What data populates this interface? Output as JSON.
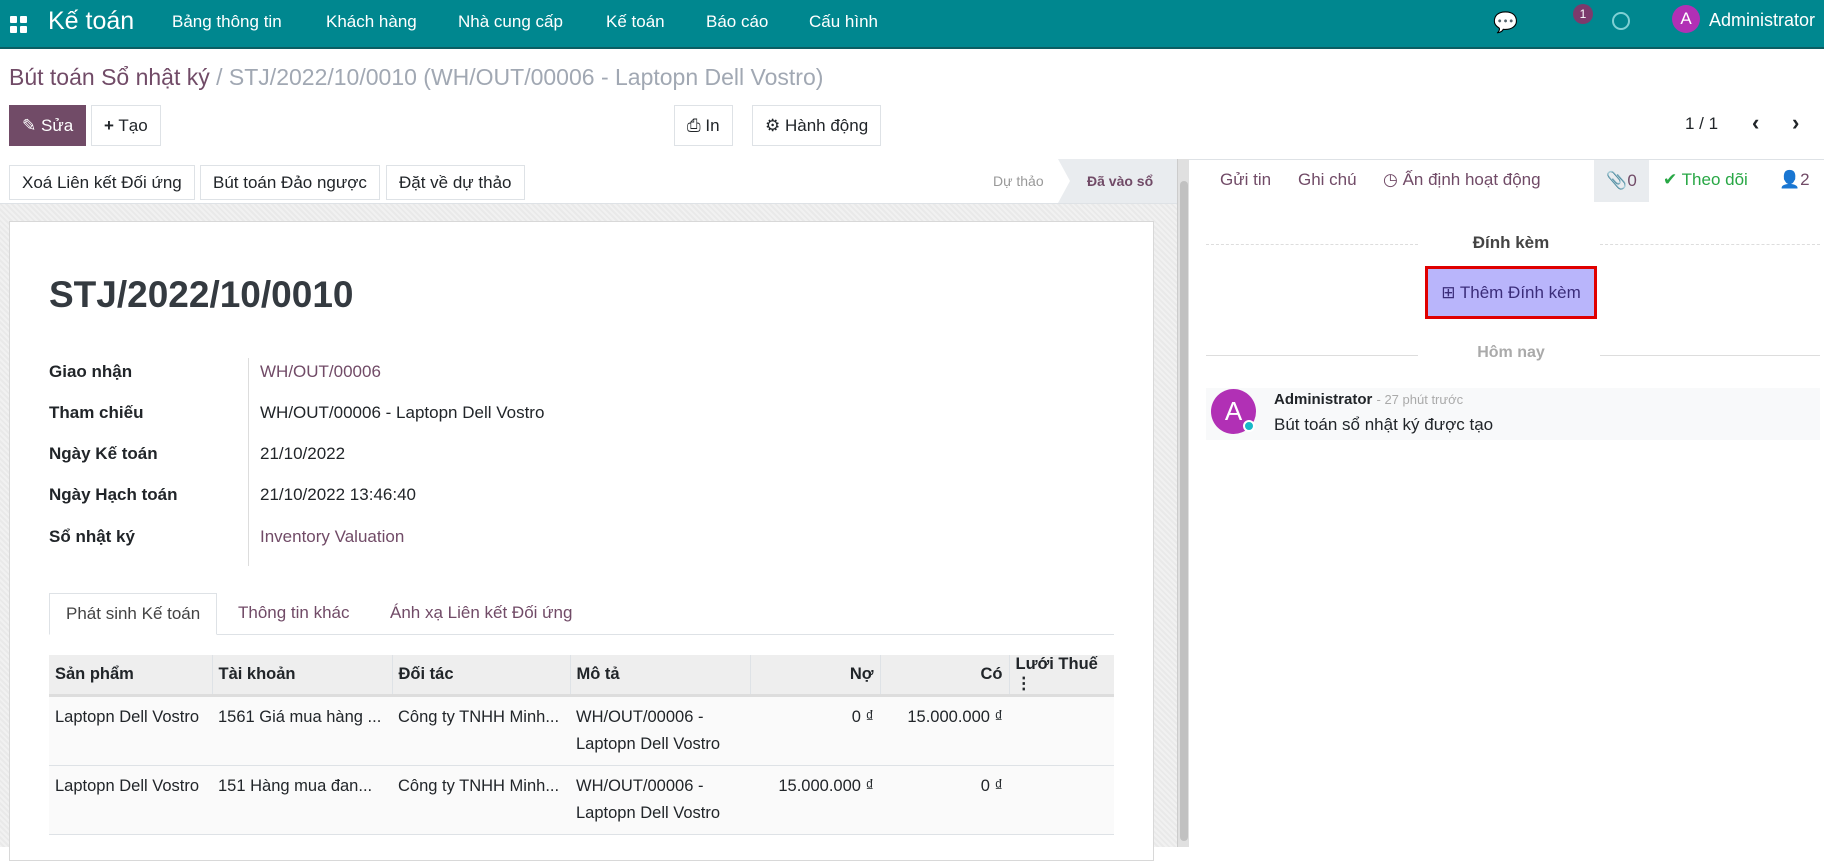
{
  "navbar": {
    "app": "Kế toán",
    "menu": [
      "Bảng thông tin",
      "Khách hàng",
      "Nhà cung cấp",
      "Kế toán",
      "Báo cáo",
      "Cấu hình"
    ],
    "messages_count": "1",
    "user": "Administrator",
    "user_initial": "A"
  },
  "breadcrumb": {
    "parent": "Bút toán Sổ nhật ký",
    "separator": "/",
    "current": "STJ/2022/10/0010 (WH/OUT/00006 - Laptopn Dell Vostro)"
  },
  "toolbar": {
    "edit": "Sửa",
    "create": "Tạo",
    "print": "In",
    "action": "Hành động",
    "pager": "1 / 1"
  },
  "actions": {
    "buttons": [
      "Xoá Liên kết Đối ứng",
      "Bút toán Đảo ngược",
      "Đặt về dự thảo"
    ],
    "status": [
      "Dự thảo",
      "Đã vào sổ"
    ],
    "active_status": "Đã vào sổ"
  },
  "form": {
    "title": "STJ/2022/10/0010",
    "fields": [
      {
        "label": "Giao nhận",
        "value": "WH/OUT/00006",
        "link": true
      },
      {
        "label": "Tham chiếu",
        "value": "WH/OUT/00006 - Laptopn Dell Vostro",
        "link": false
      },
      {
        "label": "Ngày Kế toán",
        "value": "21/10/2022",
        "link": false
      },
      {
        "label": "Ngày Hạch toán",
        "value": "21/10/2022 13:46:40",
        "link": false
      },
      {
        "label": "Sổ nhật ký",
        "value": "Inventory Valuation",
        "link": true
      }
    ],
    "tabs": [
      "Phát sinh Kế toán",
      "Thông tin khác",
      "Ánh xạ Liên kết Đối ứng"
    ],
    "table": {
      "headers": [
        "Sản phẩm",
        "Tài khoản",
        "Đối tác",
        "Mô tả",
        "Nợ",
        "Có",
        "Lưới Thuế"
      ],
      "rows": [
        [
          "Laptopn Dell Vostro",
          "1561 Giá mua hàng ...",
          "Công ty TNHH Minh...",
          "WH/OUT/00006 - Laptopn Dell Vostro",
          "0 ₫",
          "15.000.000 ₫",
          ""
        ],
        [
          "Laptopn Dell Vostro",
          "151 Hàng mua đan...",
          "Công ty TNHH Minh...",
          "WH/OUT/00006 - Laptopn Dell Vostro",
          "15.000.000 ₫",
          "0 ₫",
          ""
        ]
      ]
    }
  },
  "chatter": {
    "send": "Gửi tin",
    "note": "Ghi chú",
    "schedule": "Ấn định hoạt động",
    "attachments_count": "0",
    "follow": "Theo dõi",
    "followers": "2",
    "attachments_title": "Đính kèm",
    "add_attachment": "Thêm Đính kèm",
    "today": "Hôm nay",
    "message": {
      "author": "Administrator",
      "time": "- 27 phút trước",
      "body": "Bút toán sổ nhật ký được tạo",
      "initial": "A"
    }
  },
  "colors": {
    "navbar": "#00878f",
    "primary": "#714b67",
    "highlight": "#e00000",
    "add_attachment_bg": "#b9b5fb"
  }
}
